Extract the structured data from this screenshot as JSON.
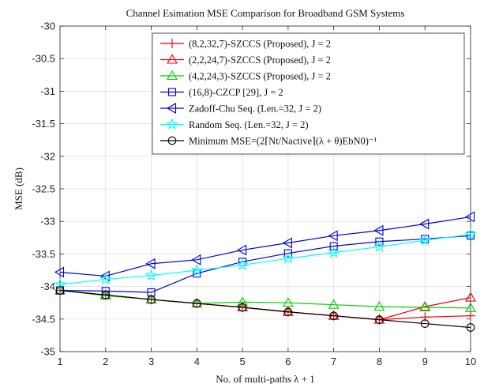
{
  "chart_data": {
    "type": "line",
    "title": "Channel Esimation MSE Comparison for Broadband GSM Systems",
    "xlabel": "No. of multi-paths λ + 1",
    "ylabel": "MSE (dB)",
    "xlim": [
      1,
      10
    ],
    "ylim": [
      -35,
      -30
    ],
    "xticks": [
      1,
      2,
      3,
      4,
      5,
      6,
      7,
      8,
      9,
      10
    ],
    "yticks": [
      -35,
      -34.5,
      -34,
      -33.5,
      -33,
      -32.5,
      -32,
      -31.5,
      -31,
      -30.5,
      -30
    ],
    "grid": true,
    "legend_position": "top-right",
    "x": [
      1,
      2,
      3,
      4,
      5,
      6,
      7,
      8,
      9,
      10
    ],
    "series": [
      {
        "name": "(8,2,32,7)-SZCCS (Proposed), J = 2",
        "color": "#e8000b",
        "marker": "plus",
        "values": [
          -34.06,
          -34.13,
          -34.2,
          -34.26,
          -34.32,
          -34.39,
          -34.45,
          -34.51,
          -34.47,
          -34.45
        ]
      },
      {
        "name": "(2,2,24,7)-SZCCS (Proposed), J = 2",
        "color": "#e8000b",
        "marker": "triangle-up",
        "values": [
          -34.06,
          -34.13,
          -34.2,
          -34.26,
          -34.32,
          -34.39,
          -34.45,
          -34.51,
          -34.31,
          -34.17
        ]
      },
      {
        "name": "(4,2,24,3)-SZCCS (Proposed), J = 2",
        "color": "#00d000",
        "marker": "triangle-up",
        "values": [
          -34.06,
          -34.14,
          -34.2,
          -34.26,
          -34.24,
          -34.25,
          -34.28,
          -34.31,
          -34.32,
          -34.33
        ]
      },
      {
        "name": "(16,8)-CZCP [29], J = 2",
        "color": "#0000dd",
        "marker": "square",
        "values": [
          -34.06,
          -34.07,
          -34.09,
          -33.8,
          -33.62,
          -33.49,
          -33.38,
          -33.31,
          -33.27,
          -33.22
        ]
      },
      {
        "name": "Zadoff-Chu Seq. (Len.=32, J = 2)",
        "color": "#0000dd",
        "marker": "triangle-left",
        "values": [
          -33.78,
          -33.84,
          -33.65,
          -33.59,
          -33.44,
          -33.33,
          -33.22,
          -33.14,
          -33.04,
          -32.93
        ]
      },
      {
        "name": "Random Seq. (Len.=32, J = 2)",
        "color": "#00ffff",
        "marker": "star",
        "values": [
          -33.97,
          -33.89,
          -33.83,
          -33.75,
          -33.67,
          -33.57,
          -33.48,
          -33.39,
          -33.29,
          -33.2
        ]
      },
      {
        "name": "Minimum MSE=(2⌈Nt/Nactive⌉(λ + θ)EbN0)⁻¹",
        "color": "#000000",
        "marker": "circle",
        "values": [
          -34.06,
          -34.13,
          -34.2,
          -34.26,
          -34.32,
          -34.39,
          -34.45,
          -34.51,
          -34.57,
          -34.63
        ]
      }
    ]
  }
}
